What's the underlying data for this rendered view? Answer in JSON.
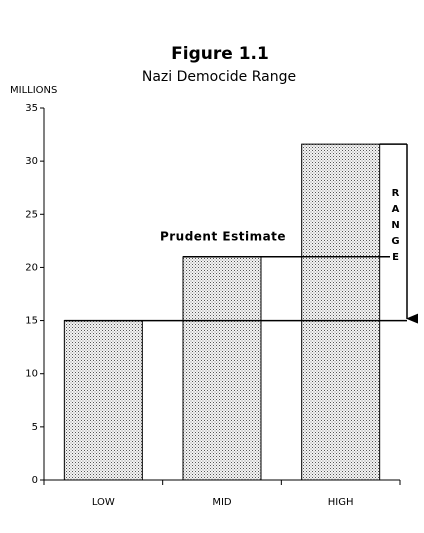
{
  "chart_data": {
    "type": "bar",
    "title": "Figure 1.1",
    "subtitle": "Nazi Democide Range",
    "y_label": "MILLIONS",
    "categories": [
      "LOW",
      "MID",
      "HIGH"
    ],
    "values": [
      15,
      21,
      31.6
    ],
    "ylim": [
      0,
      35
    ],
    "yticks": [
      0,
      5,
      10,
      15,
      20,
      25,
      30,
      35
    ],
    "annotations": [
      "Prudent Estimate",
      "RANGE"
    ]
  }
}
